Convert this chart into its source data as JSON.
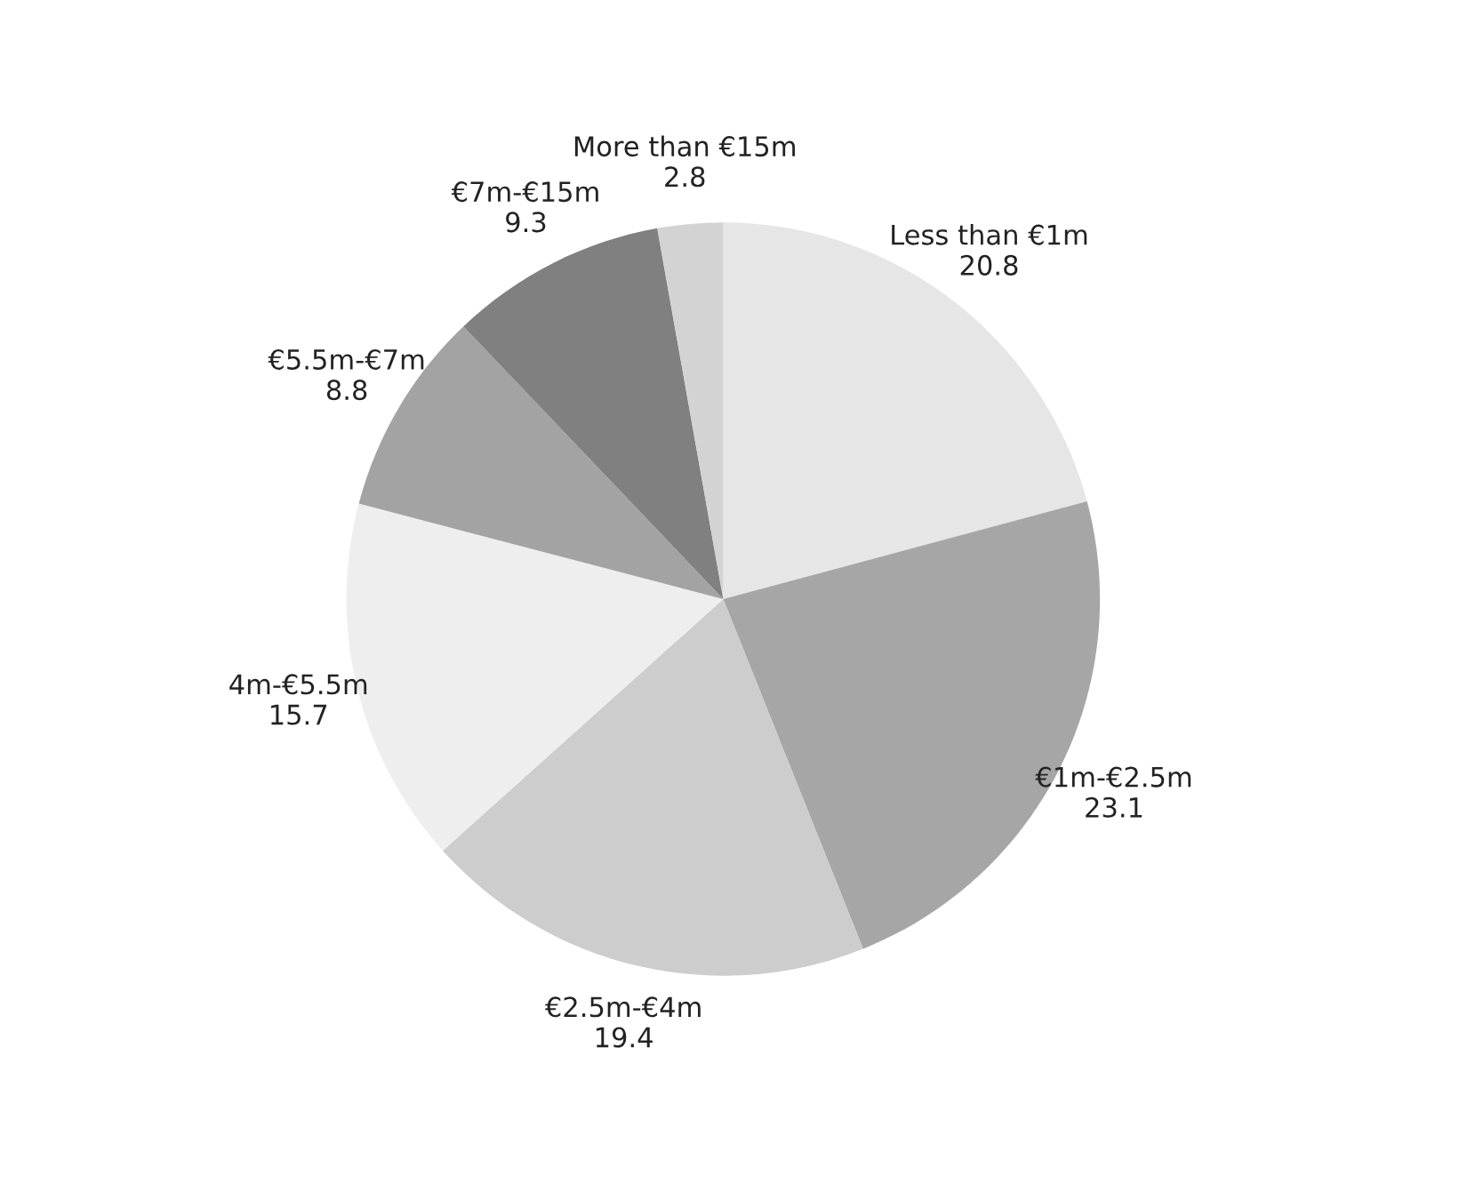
{
  "chart_data": {
    "type": "pie",
    "categories": [
      "Less than €1m",
      "€1m-€2.5m",
      "€2.5m-€4m",
      "4m-€5.5m",
      "€5.5m-€7m",
      "€7m-€15m",
      "More than €15m"
    ],
    "values": [
      20.8,
      23.1,
      19.4,
      15.7,
      8.8,
      9.3,
      2.8
    ],
    "colors": [
      "#e6e6e6",
      "#a6a6a6",
      "#cdcdcd",
      "#eeeeee",
      "#a3a3a3",
      "#808080",
      "#d3d3d3"
    ],
    "data_labels": true
  }
}
